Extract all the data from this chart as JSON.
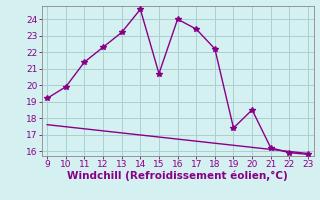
{
  "x_main": [
    9,
    10,
    11,
    12,
    13,
    14,
    15,
    16,
    17,
    18,
    19,
    20,
    21,
    22,
    23
  ],
  "y_main": [
    19.2,
    19.9,
    21.4,
    22.3,
    23.2,
    24.6,
    20.7,
    24.0,
    23.4,
    22.2,
    17.4,
    18.5,
    16.2,
    15.9,
    15.8
  ],
  "x_line2_start": 9,
  "x_line2_end": 23,
  "y_line2_start": 17.6,
  "y_line2_end": 15.85,
  "line_color": "#880088",
  "bg_color": "#d5f0f0",
  "grid_color": "#aacfcf",
  "xlabel": "Windchill (Refroidissement éolien,°C)",
  "xlim_min": 8.7,
  "xlim_max": 23.3,
  "ylim_min": 15.7,
  "ylim_max": 24.8,
  "yticks": [
    16,
    17,
    18,
    19,
    20,
    21,
    22,
    23,
    24
  ],
  "xticks": [
    9,
    10,
    11,
    12,
    13,
    14,
    15,
    16,
    17,
    18,
    19,
    20,
    21,
    22,
    23
  ],
  "tick_fontsize": 6.5,
  "xlabel_fontsize": 7.5,
  "spine_color": "#888888",
  "label_color": "#880088"
}
